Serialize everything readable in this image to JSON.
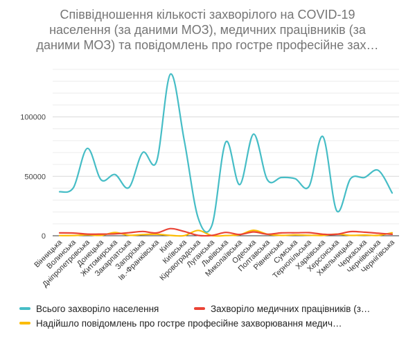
{
  "chart_data": {
    "type": "line",
    "title_lines": [
      "Співвідношення кількості захворілого на COVID-19",
      "населення (за даними МОЗ), медичних працівників (за",
      "даними МОЗ) та повідомлень про гостре професійне зах…"
    ],
    "categories": [
      "Вінницька",
      "Волинська",
      "Дніпропетровська",
      "Донецька",
      "Житомирська",
      "Закарпатська",
      "Запорізька",
      "Ів.-Франківська",
      "Київ",
      "Київська",
      "Кіровоградська",
      "Луганська",
      "Львівська",
      "Миколаївська",
      "Одеська",
      "Полтавська",
      "Рівненська",
      "Сумська",
      "Тернопільська",
      "Харківська",
      "Херсонська",
      "Хмельницька",
      "Черкаська",
      "Чернівецька",
      "Чернігівська"
    ],
    "y_ticks": [
      "0",
      "50000",
      "100000"
    ],
    "ylim": [
      0,
      140000
    ],
    "grid": true,
    "legend_position": "bottom",
    "series": [
      {
        "name": "Всього захворіло населення",
        "legend_label": "Всього захворіло населення",
        "color": "#46bdc6",
        "values": [
          37000,
          40500,
          73500,
          47000,
          51500,
          40500,
          70000,
          62500,
          136000,
          80000,
          15000,
          9000,
          79000,
          43000,
          85500,
          47000,
          49000,
          48000,
          41500,
          83500,
          21000,
          48000,
          49000,
          55000,
          36000
        ]
      },
      {
        "name": "Захворіло медичних працівників (за даними МОЗ)",
        "legend_label": "Захворіло медичних працівників (з…",
        "color": "#ea4335",
        "values": [
          2400,
          2300,
          1400,
          1400,
          1600,
          2500,
          3600,
          2400,
          6000,
          3600,
          300,
          300,
          2800,
          1100,
          3200,
          1300,
          2400,
          2500,
          2600,
          1300,
          1200,
          3500,
          3000,
          2100,
          1200
        ]
      },
      {
        "name": "Надійшло повідомлень про гостре професійне захворювання медичних працівників",
        "legend_label": "Надійшло повідомлень про гостре професійне захворювання медич…",
        "color": "#fbbc04",
        "values": [
          200,
          200,
          800,
          300,
          2700,
          400,
          1000,
          1300,
          300,
          100,
          4500,
          100,
          200,
          900,
          4600,
          1300,
          300,
          700,
          400,
          300,
          1400,
          300,
          600,
          300,
          2500
        ]
      }
    ]
  }
}
